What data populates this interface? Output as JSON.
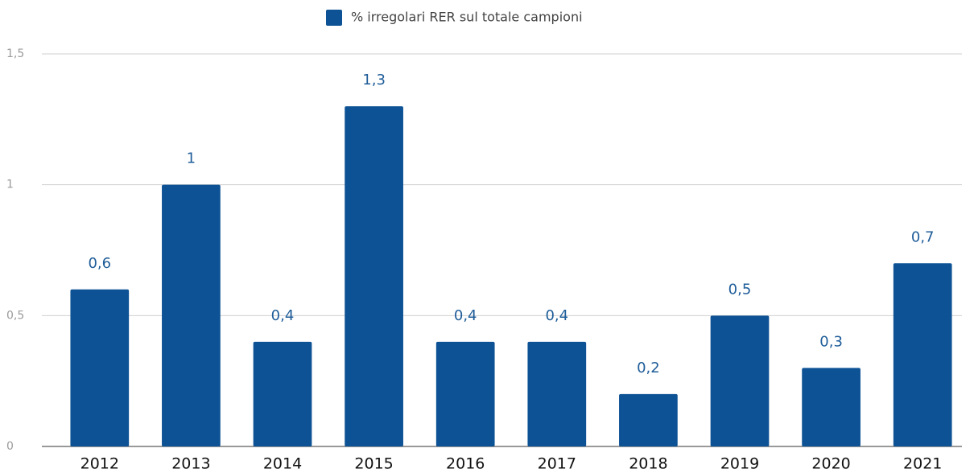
{
  "chart_data": {
    "type": "bar",
    "legend": "% irregolari RER sul totale campioni",
    "legend_position": "top",
    "categories": [
      "2012",
      "2013",
      "2014",
      "2015",
      "2016",
      "2017",
      "2018",
      "2019",
      "2020",
      "2021"
    ],
    "values": [
      0.6,
      1,
      0.4,
      1.3,
      0.4,
      0.4,
      0.2,
      0.5,
      0.3,
      0.7
    ],
    "value_labels": [
      "0,6",
      "1",
      "0,4",
      "1,3",
      "0,4",
      "0,4",
      "0,2",
      "0,5",
      "0,3",
      "0,7"
    ],
    "color": "#0d5294",
    "ylim": [
      0,
      1.5
    ],
    "yticks": [
      0,
      {
        "value": 0.5,
        "label": "0,5"
      },
      1,
      {
        "value": 1.5,
        "label": "1,5"
      }
    ],
    "grid": true
  }
}
